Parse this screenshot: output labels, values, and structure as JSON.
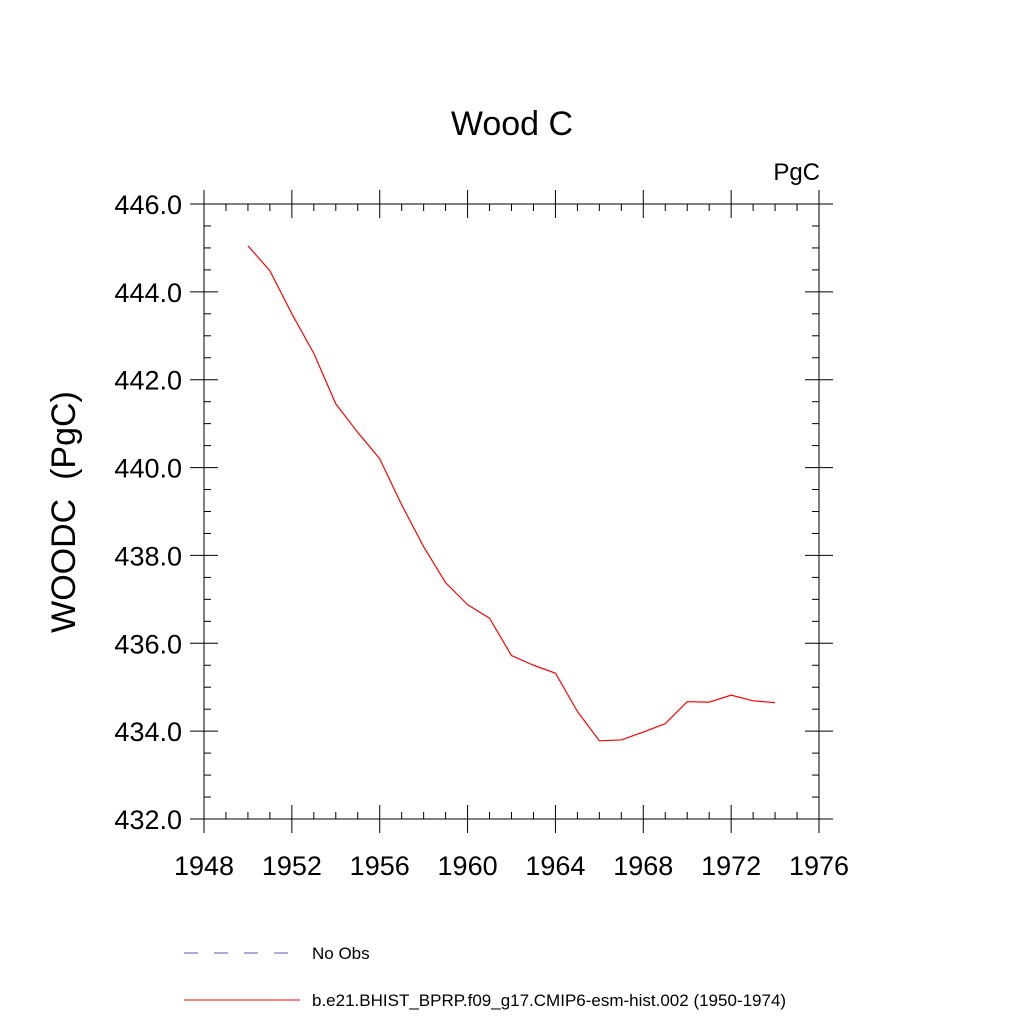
{
  "chart_data": {
    "type": "line",
    "title": "Wood C",
    "units_label": "PgC",
    "ylabel": "WOODC  (PgC)",
    "xlabel": "",
    "xlim": [
      1948,
      1976
    ],
    "ylim": [
      432,
      446
    ],
    "x_ticks": [
      1948,
      1952,
      1956,
      1960,
      1964,
      1968,
      1972,
      1976
    ],
    "x_tick_labels": [
      "1948",
      "1952",
      "1956",
      "1960",
      "1964",
      "1968",
      "1972",
      "1976"
    ],
    "y_ticks": [
      432,
      434,
      436,
      438,
      440,
      442,
      444,
      446
    ],
    "y_tick_labels": [
      "432.0",
      "434.0",
      "436.0",
      "438.0",
      "440.0",
      "442.0",
      "444.0",
      "446.0"
    ],
    "x_minor_step": 1,
    "y_minor_step": 0.5,
    "grid": false,
    "legend_position": "bottom",
    "legend": [
      {
        "label": "No Obs",
        "color": "#5a5ab8",
        "dash": "dashed"
      },
      {
        "label": "b.e21.BHIST_BPRP.f09_g17.CMIP6-esm-hist.002 (1950-1974)",
        "color": "#ff0000",
        "dash": "solid"
      }
    ],
    "series": [
      {
        "name": "b.e21.BHIST_BPRP.f09_g17.CMIP6-esm-hist.002 (1950-1974)",
        "color": "#ff0000",
        "x": [
          1950,
          1951,
          1952,
          1953,
          1954,
          1955,
          1956,
          1957,
          1958,
          1959,
          1960,
          1961,
          1962,
          1963,
          1964,
          1965,
          1966,
          1967,
          1968,
          1969,
          1970,
          1971,
          1972,
          1973,
          1974
        ],
        "y": [
          445.05,
          444.48,
          443.5,
          442.6,
          441.45,
          440.8,
          440.2,
          439.15,
          438.2,
          437.38,
          436.88,
          436.57,
          435.72,
          435.5,
          435.32,
          434.45,
          433.78,
          433.8,
          433.98,
          434.17,
          434.67,
          434.66,
          434.82,
          434.69,
          434.65
        ]
      }
    ]
  }
}
